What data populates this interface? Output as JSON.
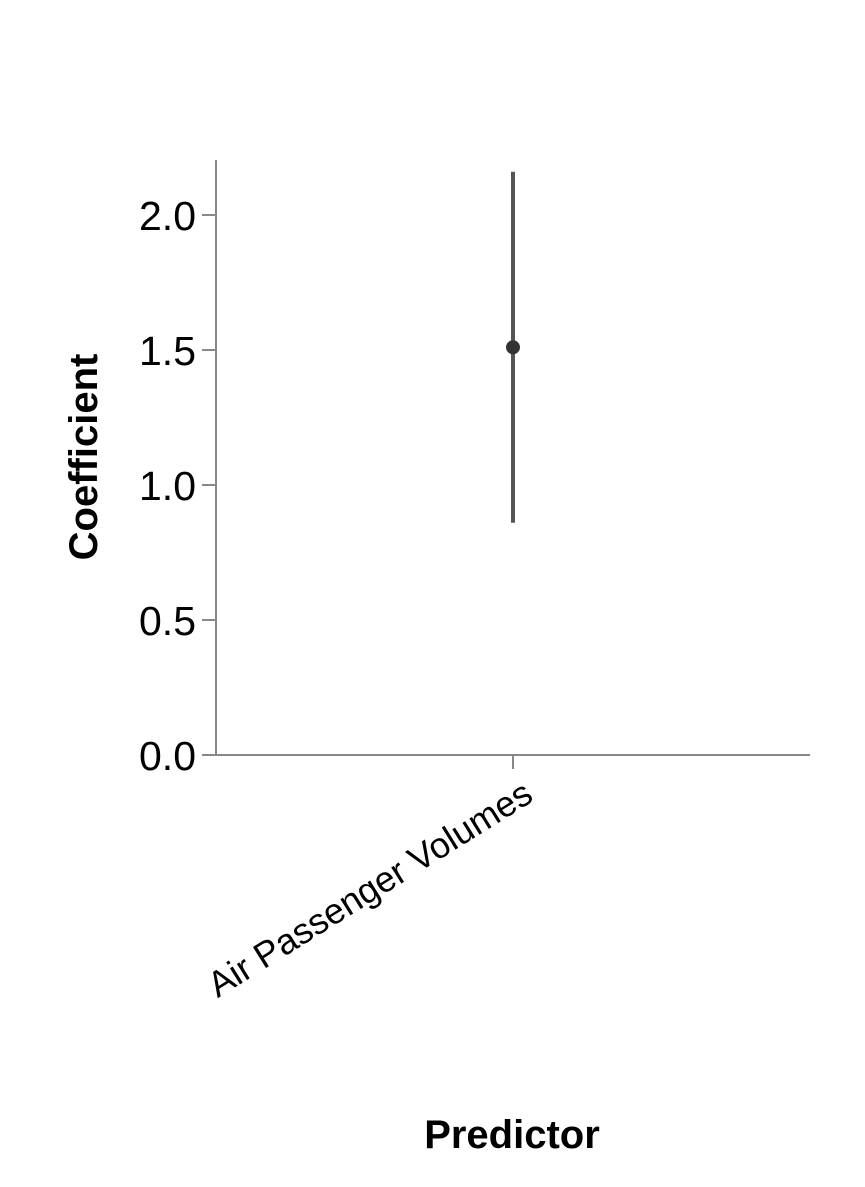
{
  "chart_data": {
    "type": "errorbar",
    "xlabel": "Predictor",
    "ylabel": "Coefficient",
    "categories": [
      "Air Passenger Volumes"
    ],
    "series": [
      {
        "values": [
          1.51
        ],
        "ci_lower": [
          0.86
        ],
        "ci_upper": [
          2.16
        ]
      }
    ],
    "ylim": [
      0,
      2.2
    ],
    "yticks": [
      0,
      0.5,
      1,
      1.5,
      2
    ],
    "ytick_labels": [
      "0.0",
      "0.5",
      "1.0",
      "1.5",
      "2.0"
    ],
    "grid": false,
    "legend": "none",
    "colors": {
      "axis": "#888888",
      "mark": "#555555",
      "point": "#333333",
      "text": "#000000"
    }
  }
}
